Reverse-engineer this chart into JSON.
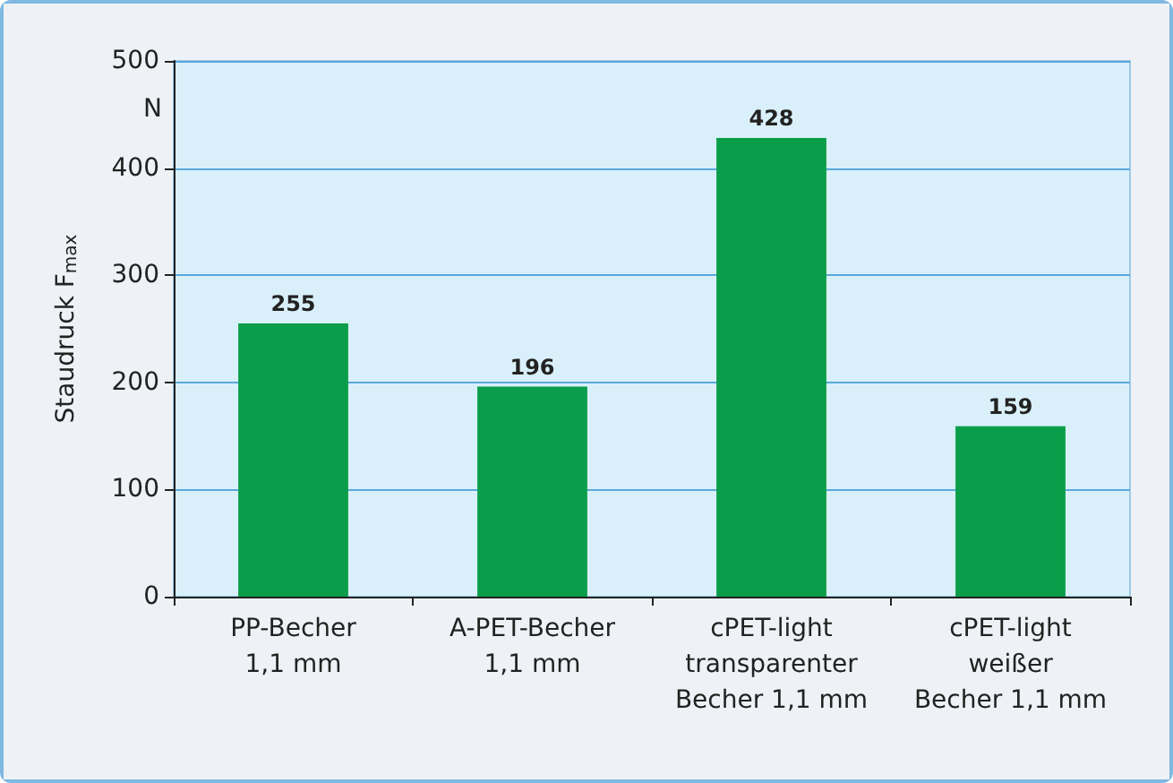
{
  "chart_data": {
    "type": "bar",
    "ylabel": "Staudruck F$_{max}$",
    "annotations": [
      "N"
    ],
    "categories": [
      "PP-Becher\n1,1 mm",
      "A-PET-Becher\n1,1 mm",
      "cPET-light\ntransparenter\nBecher 1,1 mm",
      "cPET-light\nweißer\nBecher 1,1 mm"
    ],
    "values": [
      255,
      196,
      428,
      159
    ],
    "color": "#0b9e4a",
    "ylim": [
      0,
      500
    ],
    "yticks": [
      0,
      100,
      200,
      300,
      400,
      500
    ],
    "grid": "y",
    "data_labels": true
  }
}
